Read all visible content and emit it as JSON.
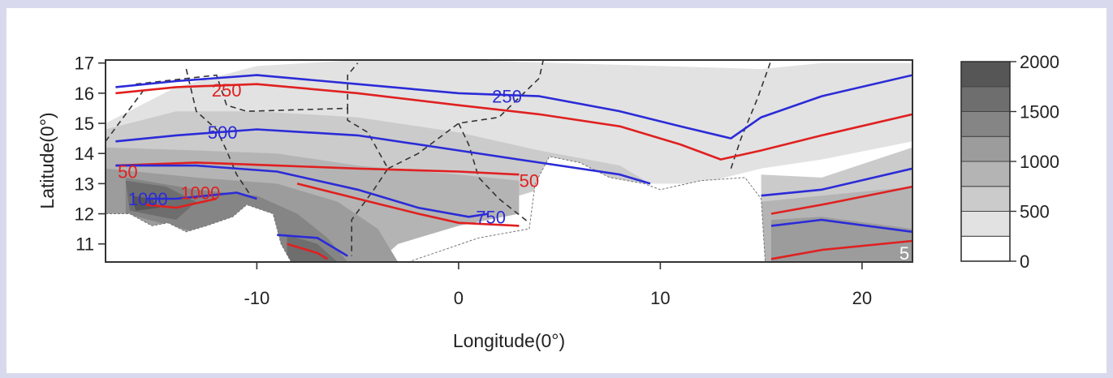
{
  "chart_data": {
    "type": "contour-map",
    "xlabel": "Longitude(0°)",
    "ylabel": "Latitude(0°)",
    "xlim": [
      -17.5,
      22.5
    ],
    "ylim": [
      10.4,
      17.1
    ],
    "x_ticks": [
      -10,
      0,
      10,
      20
    ],
    "y_ticks": [
      11,
      12,
      13,
      14,
      15,
      16,
      17
    ],
    "colorbar": {
      "levels": [
        0,
        250,
        500,
        750,
        1000,
        1250,
        1500,
        1750,
        2000
      ],
      "tick_labels": [
        "0",
        "500",
        "1000",
        "1500",
        "2000"
      ],
      "tick_values": [
        0,
        500,
        1000,
        1500,
        2000
      ],
      "colors": [
        "#ffffff",
        "#e2e2e2",
        "#cbcbcb",
        "#b4b4b4",
        "#9c9c9c",
        "#858585",
        "#6e6e6e",
        "#565656",
        "#3e3e3e"
      ]
    },
    "series_colors": {
      "blue": "#2b2bd8",
      "red": "#e02020",
      "border": "#333333"
    },
    "blue_isohyets": [
      {
        "value": 250,
        "points": [
          [
            -17,
            16.2
          ],
          [
            -14,
            16.4
          ],
          [
            -10,
            16.6
          ],
          [
            -5,
            16.3
          ],
          [
            0,
            16.0
          ],
          [
            4,
            15.9
          ],
          [
            8,
            15.4
          ],
          [
            11,
            14.9
          ],
          [
            13.5,
            14.5
          ],
          [
            15,
            15.2
          ],
          [
            18,
            15.9
          ],
          [
            22.5,
            16.6
          ]
        ]
      },
      {
        "value": 500,
        "points": [
          [
            -17,
            14.4
          ],
          [
            -14,
            14.6
          ],
          [
            -10,
            14.8
          ],
          [
            -5,
            14.6
          ],
          [
            0,
            14.1
          ],
          [
            4,
            13.7
          ],
          [
            8,
            13.3
          ],
          [
            9.5,
            13.0
          ]
        ]
      },
      {
        "value": 500,
        "points": [
          [
            15,
            12.6
          ],
          [
            18,
            12.8
          ],
          [
            22.5,
            13.5
          ]
        ]
      },
      {
        "value": 750,
        "points": [
          [
            -17,
            13.6
          ],
          [
            -13,
            13.6
          ],
          [
            -9,
            13.4
          ],
          [
            -5,
            12.8
          ],
          [
            -2,
            12.2
          ],
          [
            0.5,
            11.9
          ],
          [
            1.5,
            12.0
          ]
        ]
      },
      {
        "value": 750,
        "points": [
          [
            15.5,
            11.6
          ],
          [
            18,
            11.8
          ],
          [
            22.5,
            11.4
          ]
        ]
      },
      {
        "value": 1000,
        "points": [
          [
            -15.5,
            12.5
          ],
          [
            -14,
            12.5
          ],
          [
            -11,
            12.7
          ],
          [
            -10,
            12.5
          ]
        ]
      },
      {
        "value": 1000,
        "points": [
          [
            -9,
            11.3
          ],
          [
            -7,
            11.2
          ],
          [
            -5.5,
            10.6
          ]
        ]
      }
    ],
    "red_isohyets": [
      {
        "value": 250,
        "points": [
          [
            -17,
            16.0
          ],
          [
            -14,
            16.2
          ],
          [
            -10,
            16.3
          ],
          [
            -5,
            16.0
          ],
          [
            0,
            15.6
          ],
          [
            4,
            15.3
          ],
          [
            8,
            14.9
          ],
          [
            11,
            14.3
          ],
          [
            13,
            13.8
          ],
          [
            15,
            14.1
          ],
          [
            18,
            14.6
          ],
          [
            22.5,
            15.3
          ]
        ]
      },
      {
        "value": 500,
        "points": [
          [
            -17,
            13.6
          ],
          [
            -13,
            13.7
          ],
          [
            -9,
            13.6
          ],
          [
            -5,
            13.5
          ],
          [
            0,
            13.4
          ],
          [
            3,
            13.3
          ]
        ]
      },
      {
        "value": 500,
        "points": [
          [
            15.5,
            12.0
          ],
          [
            18,
            12.3
          ],
          [
            22.5,
            12.9
          ]
        ]
      },
      {
        "value": 750,
        "points": [
          [
            -8,
            13.0
          ],
          [
            -5,
            12.5
          ],
          [
            -2,
            12.0
          ],
          [
            0,
            11.7
          ],
          [
            3,
            11.6
          ]
        ]
      },
      {
        "value": 750,
        "points": [
          [
            15.5,
            10.5
          ],
          [
            18,
            10.8
          ],
          [
            22.5,
            11.1
          ]
        ]
      },
      {
        "value": 1000,
        "points": [
          [
            -15.5,
            12.3
          ],
          [
            -14,
            12.2
          ],
          [
            -12,
            12.5
          ]
        ]
      },
      {
        "value": 1000,
        "points": [
          [
            -8.5,
            11.0
          ],
          [
            -7,
            10.7
          ],
          [
            -6.5,
            10.5
          ]
        ]
      }
    ],
    "contour_labels": [
      {
        "text": "250",
        "x": -11.5,
        "y": 16.1,
        "color": "red"
      },
      {
        "text": "250",
        "x": 2.4,
        "y": 15.9,
        "color": "blue"
      },
      {
        "text": "500",
        "x": -11.7,
        "y": 14.7,
        "color": "blue"
      },
      {
        "text": "50",
        "x": -16.4,
        "y": 13.4,
        "color": "red"
      },
      {
        "text": "50",
        "x": 3.5,
        "y": 13.1,
        "color": "red"
      },
      {
        "text": "1000",
        "x": -15.4,
        "y": 12.5,
        "color": "blue"
      },
      {
        "text": "1000",
        "x": -12.8,
        "y": 12.7,
        "color": "red"
      },
      {
        "text": "750",
        "x": 1.6,
        "y": 11.9,
        "color": "blue"
      },
      {
        "text": "5",
        "x": 22.1,
        "y": 10.7,
        "color": "white"
      }
    ],
    "shading_bands": [
      {
        "level": 250,
        "points": [
          [
            -17.5,
            15.0
          ],
          [
            -14,
            16.2
          ],
          [
            -10,
            16.9
          ],
          [
            -5,
            17.1
          ],
          [
            0,
            17.1
          ],
          [
            5,
            17.0
          ],
          [
            10,
            16.9
          ],
          [
            15,
            16.8
          ],
          [
            18,
            17.0
          ],
          [
            22.5,
            17.0
          ],
          [
            22.5,
            14.4
          ],
          [
            18,
            13.8
          ],
          [
            15,
            13.5
          ],
          [
            12,
            13.0
          ],
          [
            8,
            13.0
          ],
          [
            5,
            13.8
          ],
          [
            0,
            12.0
          ],
          [
            -5,
            10.4
          ],
          [
            -17.5,
            10.4
          ]
        ]
      },
      {
        "level": 500,
        "points": [
          [
            -17.5,
            14.8
          ],
          [
            -14,
            15.4
          ],
          [
            -10,
            15.4
          ],
          [
            -5,
            15.2
          ],
          [
            0,
            14.7
          ],
          [
            4,
            14.1
          ],
          [
            8,
            13.6
          ],
          [
            9.5,
            13.0
          ],
          [
            5,
            13.0
          ],
          [
            0,
            12.0
          ],
          [
            -5,
            10.4
          ],
          [
            -17.5,
            10.4
          ]
        ]
      },
      {
        "level": 500,
        "points": [
          [
            15,
            13.3
          ],
          [
            18,
            13.2
          ],
          [
            22.5,
            14.2
          ],
          [
            22.5,
            10.4
          ],
          [
            15,
            10.4
          ]
        ]
      },
      {
        "level": 750,
        "points": [
          [
            -17.5,
            14.2
          ],
          [
            -13,
            14.1
          ],
          [
            -9,
            14.0
          ],
          [
            -5,
            13.6
          ],
          [
            0,
            13.3
          ],
          [
            3,
            13.1
          ],
          [
            3,
            12.0
          ],
          [
            0,
            11.6
          ],
          [
            -3,
            11.0
          ],
          [
            -4,
            10.4
          ],
          [
            -17.5,
            10.4
          ]
        ]
      },
      {
        "level": 750,
        "points": [
          [
            15,
            12.4
          ],
          [
            18,
            12.6
          ],
          [
            22.5,
            12.9
          ],
          [
            22.5,
            10.4
          ],
          [
            15,
            10.4
          ]
        ]
      },
      {
        "level": 1000,
        "points": [
          [
            -17.5,
            13.5
          ],
          [
            -13,
            13.2
          ],
          [
            -9,
            13.0
          ],
          [
            -6,
            12.4
          ],
          [
            -4,
            11.5
          ],
          [
            -3,
            10.4
          ],
          [
            -17.5,
            10.4
          ]
        ]
      },
      {
        "level": 1000,
        "points": [
          [
            15.5,
            11.8
          ],
          [
            18,
            11.9
          ],
          [
            22.5,
            11.5
          ],
          [
            22.5,
            10.4
          ],
          [
            15.5,
            10.4
          ]
        ]
      },
      {
        "level": 1250,
        "points": [
          [
            -16.5,
            13.2
          ],
          [
            -13,
            12.8
          ],
          [
            -10,
            12.6
          ],
          [
            -8,
            12.0
          ],
          [
            -6.5,
            11.2
          ],
          [
            -5.5,
            10.4
          ],
          [
            -9,
            10.4
          ],
          [
            -9,
            11.0
          ],
          [
            -11,
            11.5
          ],
          [
            -12.5,
            11.3
          ],
          [
            -16.5,
            12.0
          ]
        ]
      },
      {
        "level": 1500,
        "points": [
          [
            -16.5,
            13.1
          ],
          [
            -14.5,
            12.9
          ],
          [
            -13,
            12.4
          ],
          [
            -14,
            11.8
          ],
          [
            -16.3,
            12.1
          ]
        ]
      },
      {
        "level": 1500,
        "points": [
          [
            -8.5,
            11.3
          ],
          [
            -7,
            11.0
          ],
          [
            -6,
            10.4
          ],
          [
            -8.5,
            10.4
          ]
        ]
      },
      {
        "level": 1750,
        "points": [
          [
            -16.2,
            12.6
          ],
          [
            -15.2,
            12.5
          ],
          [
            -14.8,
            12.2
          ],
          [
            -16.0,
            12.1
          ]
        ]
      }
    ],
    "white_cutouts": [
      [
        [
          -17.5,
          12.0
        ],
        [
          -16.3,
          12.0
        ],
        [
          -15.2,
          11.6
        ],
        [
          -14.4,
          11.7
        ],
        [
          -13.5,
          11.4
        ],
        [
          -12.5,
          11.6
        ],
        [
          -11.2,
          11.9
        ],
        [
          -10.5,
          12.3
        ],
        [
          -9.2,
          12.0
        ],
        [
          -8.8,
          11.0
        ],
        [
          -8.3,
          10.4
        ],
        [
          -17.5,
          10.4
        ]
      ],
      [
        [
          -2.5,
          10.4
        ],
        [
          1,
          11.2
        ],
        [
          3.5,
          11.5
        ],
        [
          3.8,
          13.0
        ],
        [
          4.5,
          13.9
        ],
        [
          6,
          13.7
        ],
        [
          7.5,
          13.2
        ],
        [
          9.2,
          13.0
        ],
        [
          10,
          12.8
        ],
        [
          12,
          13.1
        ],
        [
          14.2,
          13.2
        ],
        [
          15.0,
          12.5
        ],
        [
          15.2,
          10.4
        ]
      ]
    ],
    "borders": [
      [
        [
          -13.5,
          16.8
        ],
        [
          -13,
          15.4
        ],
        [
          -12,
          14.8
        ],
        [
          -11.5,
          14.1
        ],
        [
          -11.0,
          13.3
        ],
        [
          -10.3,
          12.6
        ]
      ],
      [
        [
          -16,
          16.3
        ],
        [
          -12,
          16.6
        ],
        [
          -11.5,
          15.6
        ],
        [
          -10.5,
          15.4
        ],
        [
          -5.5,
          15.5
        ],
        [
          -5.5,
          16.6
        ],
        [
          -5,
          17.0
        ]
      ],
      [
        [
          -5.5,
          15.5
        ],
        [
          -5.5,
          15.1
        ],
        [
          -4.5,
          14.7
        ],
        [
          -3.5,
          13.5
        ],
        [
          -4.2,
          12.8
        ],
        [
          -5.3,
          11.8
        ],
        [
          -5.3,
          10.6
        ]
      ],
      [
        [
          -3.5,
          13.5
        ],
        [
          -2,
          14.0
        ],
        [
          0,
          15.0
        ],
        [
          2,
          15.2
        ],
        [
          4,
          16.5
        ],
        [
          4.2,
          17.1
        ]
      ],
      [
        [
          0,
          15.0
        ],
        [
          0.5,
          14.3
        ],
        [
          1,
          13.2
        ],
        [
          2,
          12.5
        ],
        [
          3.5,
          11.7
        ]
      ],
      [
        [
          13.5,
          13.5
        ],
        [
          14.0,
          14.5
        ],
        [
          14.8,
          15.8
        ],
        [
          15.5,
          17.1
        ]
      ],
      [
        [
          -17.5,
          14.4
        ],
        [
          -16.5,
          15.3
        ],
        [
          -15.5,
          16.2
        ]
      ]
    ]
  }
}
